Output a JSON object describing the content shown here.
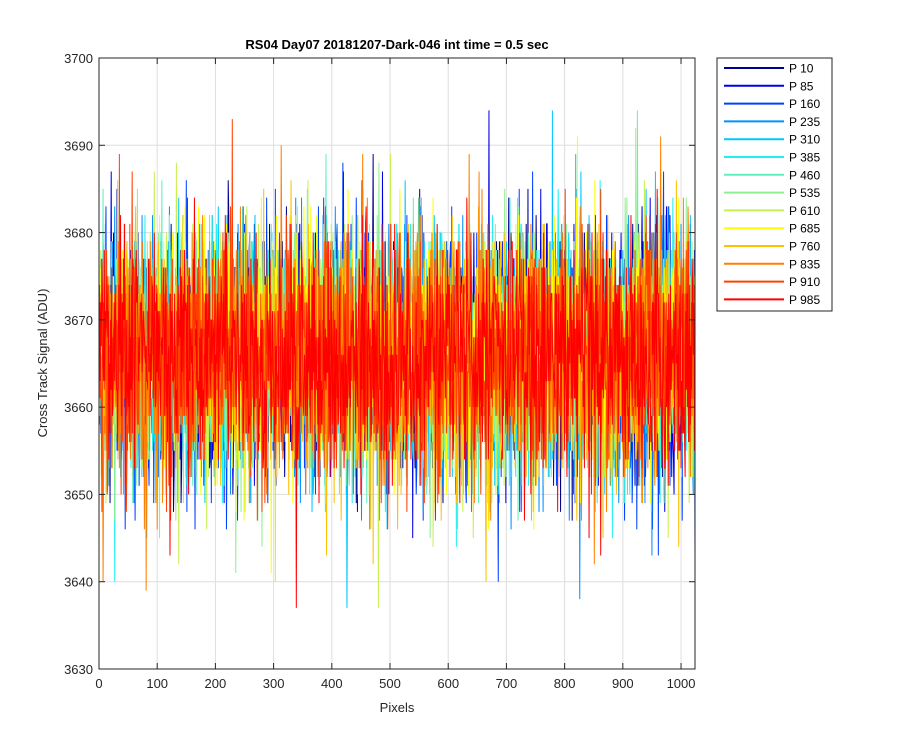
{
  "chart_data": {
    "type": "line",
    "title": "RS04 Day07 20181207-Dark-046 int time = 0.5 sec",
    "xlabel": "Pixels",
    "ylabel": "Cross Track Signal (ADU)",
    "xlim": [
      0,
      1024
    ],
    "ylim": [
      3630,
      3700
    ],
    "xticks": [
      0,
      100,
      200,
      300,
      400,
      500,
      600,
      700,
      800,
      900,
      1000
    ],
    "yticks": [
      3630,
      3640,
      3650,
      3660,
      3670,
      3680,
      3690,
      3700
    ],
    "grid": true,
    "legend_position": "outside-top-right",
    "noise_mean": 3666,
    "noise_std": 7,
    "series": [
      {
        "name": "P 10",
        "color": "#00008f"
      },
      {
        "name": "P 85",
        "color": "#0000e6"
      },
      {
        "name": "P 160",
        "color": "#0040ff"
      },
      {
        "name": "P 235",
        "color": "#0090ff"
      },
      {
        "name": "P 310",
        "color": "#00c8ff"
      },
      {
        "name": "P 385",
        "color": "#20f0f0"
      },
      {
        "name": "P 460",
        "color": "#60f0c0"
      },
      {
        "name": "P 535",
        "color": "#90f090"
      },
      {
        "name": "P 610",
        "color": "#c8f050"
      },
      {
        "name": "P 685",
        "color": "#ffff00"
      },
      {
        "name": "P 760",
        "color": "#ffc000"
      },
      {
        "name": "P 835",
        "color": "#ff8000"
      },
      {
        "name": "P 910",
        "color": "#ff4000"
      },
      {
        "name": "P 985",
        "color": "#ff0000"
      }
    ],
    "peaks": [
      {
        "series": "P 910",
        "x": 228,
        "y": 3693
      },
      {
        "series": "P 85",
        "x": 669,
        "y": 3694
      },
      {
        "series": "P 310",
        "x": 778,
        "y": 3694
      },
      {
        "series": "P 460",
        "x": 924,
        "y": 3694
      },
      {
        "series": "P 985",
        "x": 338,
        "y": 3637
      },
      {
        "series": "P 310",
        "x": 425,
        "y": 3637
      },
      {
        "series": "P 610",
        "x": 479,
        "y": 3637
      },
      {
        "series": "P 835",
        "x": 80,
        "y": 3639
      },
      {
        "series": "P 235",
        "x": 825,
        "y": 3638
      },
      {
        "series": "P 835",
        "x": 6,
        "y": 3640
      },
      {
        "series": "P 760",
        "x": 664,
        "y": 3640
      },
      {
        "series": "P 160",
        "x": 685,
        "y": 3640
      }
    ]
  }
}
